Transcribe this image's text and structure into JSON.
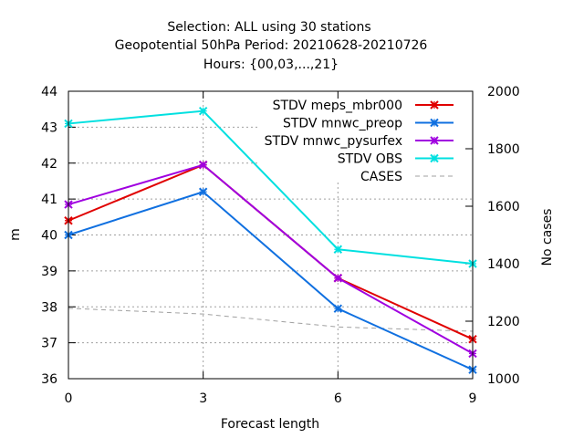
{
  "title": {
    "line1": "Selection: ALL using    30 stations",
    "line2": "Geopotential 50hPa   Period: 20210628-20210726",
    "line3": "Hours: {00,03,...,21}"
  },
  "chart_data": {
    "type": "line",
    "xlabel": "Forecast length",
    "ylabel": "m",
    "y2label": "No cases",
    "x": [
      0,
      3,
      6,
      9
    ],
    "xlim": [
      0,
      9
    ],
    "ylim": [
      36,
      44
    ],
    "y2lim": [
      1000,
      2000
    ],
    "xticks": [
      0,
      3,
      6,
      9
    ],
    "yticks": [
      36,
      37,
      38,
      39,
      40,
      41,
      42,
      43,
      44
    ],
    "y2ticks": [
      1000,
      1200,
      1400,
      1600,
      1800,
      2000
    ],
    "grid": true,
    "legend_position": "top-right",
    "series": [
      {
        "name": "STDV meps_mbr000",
        "color": "#e00000",
        "axis": "left",
        "style": "solid",
        "marker": "x",
        "values": [
          40.4,
          41.95,
          38.8,
          37.1
        ]
      },
      {
        "name": "STDV mnwc_preop",
        "color": "#1070e0",
        "axis": "left",
        "style": "solid",
        "marker": "x",
        "values": [
          40.0,
          41.2,
          37.95,
          36.25
        ]
      },
      {
        "name": "STDV mnwc_pysurfex",
        "color": "#a000e0",
        "axis": "left",
        "style": "solid",
        "marker": "x",
        "values": [
          40.85,
          41.95,
          38.8,
          36.7
        ]
      },
      {
        "name": "STDV OBS",
        "color": "#00e0e0",
        "axis": "left",
        "style": "solid",
        "marker": "x",
        "values": [
          43.1,
          43.45,
          39.6,
          39.2
        ]
      },
      {
        "name": "CASES",
        "color": "#a0a0a0",
        "axis": "right",
        "style": "dashed",
        "marker": "none",
        "values": [
          1245,
          1225,
          1180,
          1165
        ]
      }
    ]
  }
}
